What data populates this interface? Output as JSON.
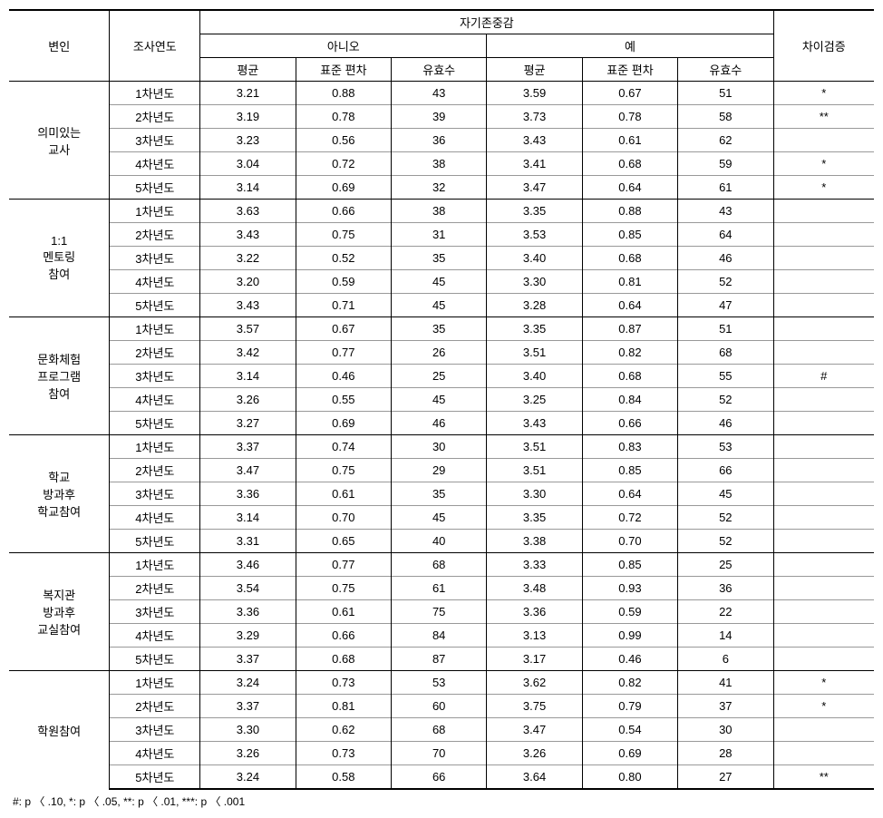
{
  "headers": {
    "variable": "변인",
    "year": "조사연도",
    "selfEsteem": "자기존중감",
    "no": "아니오",
    "yes": "예",
    "mean": "평균",
    "sd": "표준 편차",
    "n": "유효수",
    "diff": "차이검증"
  },
  "groups": [
    {
      "label": [
        "의미있는",
        "교사"
      ],
      "rows": [
        {
          "year": "1차년도",
          "nm": "3.21",
          "ns": "0.88",
          "nn": "43",
          "ym": "3.59",
          "ys": "0.67",
          "yn": "51",
          "d": "*"
        },
        {
          "year": "2차년도",
          "nm": "3.19",
          "ns": "0.78",
          "nn": "39",
          "ym": "3.73",
          "ys": "0.78",
          "yn": "58",
          "d": "**"
        },
        {
          "year": "3차년도",
          "nm": "3.23",
          "ns": "0.56",
          "nn": "36",
          "ym": "3.43",
          "ys": "0.61",
          "yn": "62",
          "d": ""
        },
        {
          "year": "4차년도",
          "nm": "3.04",
          "ns": "0.72",
          "nn": "38",
          "ym": "3.41",
          "ys": "0.68",
          "yn": "59",
          "d": "*"
        },
        {
          "year": "5차년도",
          "nm": "3.14",
          "ns": "0.69",
          "nn": "32",
          "ym": "3.47",
          "ys": "0.64",
          "yn": "61",
          "d": "*"
        }
      ]
    },
    {
      "label": [
        "1:1",
        "멘토링",
        "참여"
      ],
      "rows": [
        {
          "year": "1차년도",
          "nm": "3.63",
          "ns": "0.66",
          "nn": "38",
          "ym": "3.35",
          "ys": "0.88",
          "yn": "43",
          "d": ""
        },
        {
          "year": "2차년도",
          "nm": "3.43",
          "ns": "0.75",
          "nn": "31",
          "ym": "3.53",
          "ys": "0.85",
          "yn": "64",
          "d": ""
        },
        {
          "year": "3차년도",
          "nm": "3.22",
          "ns": "0.52",
          "nn": "35",
          "ym": "3.40",
          "ys": "0.68",
          "yn": "46",
          "d": ""
        },
        {
          "year": "4차년도",
          "nm": "3.20",
          "ns": "0.59",
          "nn": "45",
          "ym": "3.30",
          "ys": "0.81",
          "yn": "52",
          "d": ""
        },
        {
          "year": "5차년도",
          "nm": "3.43",
          "ns": "0.71",
          "nn": "45",
          "ym": "3.28",
          "ys": "0.64",
          "yn": "47",
          "d": ""
        }
      ]
    },
    {
      "label": [
        "문화체험",
        "프로그램",
        "참여"
      ],
      "rows": [
        {
          "year": "1차년도",
          "nm": "3.57",
          "ns": "0.67",
          "nn": "35",
          "ym": "3.35",
          "ys": "0.87",
          "yn": "51",
          "d": ""
        },
        {
          "year": "2차년도",
          "nm": "3.42",
          "ns": "0.77",
          "nn": "26",
          "ym": "3.51",
          "ys": "0.82",
          "yn": "68",
          "d": ""
        },
        {
          "year": "3차년도",
          "nm": "3.14",
          "ns": "0.46",
          "nn": "25",
          "ym": "3.40",
          "ys": "0.68",
          "yn": "55",
          "d": "#"
        },
        {
          "year": "4차년도",
          "nm": "3.26",
          "ns": "0.55",
          "nn": "45",
          "ym": "3.25",
          "ys": "0.84",
          "yn": "52",
          "d": ""
        },
        {
          "year": "5차년도",
          "nm": "3.27",
          "ns": "0.69",
          "nn": "46",
          "ym": "3.43",
          "ys": "0.66",
          "yn": "46",
          "d": ""
        }
      ]
    },
    {
      "label": [
        "학교",
        "방과후",
        "학교참여"
      ],
      "rows": [
        {
          "year": "1차년도",
          "nm": "3.37",
          "ns": "0.74",
          "nn": "30",
          "ym": "3.51",
          "ys": "0.83",
          "yn": "53",
          "d": ""
        },
        {
          "year": "2차년도",
          "nm": "3.47",
          "ns": "0.75",
          "nn": "29",
          "ym": "3.51",
          "ys": "0.85",
          "yn": "66",
          "d": ""
        },
        {
          "year": "3차년도",
          "nm": "3.36",
          "ns": "0.61",
          "nn": "35",
          "ym": "3.30",
          "ys": "0.64",
          "yn": "45",
          "d": ""
        },
        {
          "year": "4차년도",
          "nm": "3.14",
          "ns": "0.70",
          "nn": "45",
          "ym": "3.35",
          "ys": "0.72",
          "yn": "52",
          "d": ""
        },
        {
          "year": "5차년도",
          "nm": "3.31",
          "ns": "0.65",
          "nn": "40",
          "ym": "3.38",
          "ys": "0.70",
          "yn": "52",
          "d": ""
        }
      ]
    },
    {
      "label": [
        "복지관",
        "방과후",
        "교실참여"
      ],
      "rows": [
        {
          "year": "1차년도",
          "nm": "3.46",
          "ns": "0.77",
          "nn": "68",
          "ym": "3.33",
          "ys": "0.85",
          "yn": "25",
          "d": ""
        },
        {
          "year": "2차년도",
          "nm": "3.54",
          "ns": "0.75",
          "nn": "61",
          "ym": "3.48",
          "ys": "0.93",
          "yn": "36",
          "d": ""
        },
        {
          "year": "3차년도",
          "nm": "3.36",
          "ns": "0.61",
          "nn": "75",
          "ym": "3.36",
          "ys": "0.59",
          "yn": "22",
          "d": ""
        },
        {
          "year": "4차년도",
          "nm": "3.29",
          "ns": "0.66",
          "nn": "84",
          "ym": "3.13",
          "ys": "0.99",
          "yn": "14",
          "d": ""
        },
        {
          "year": "5차년도",
          "nm": "3.37",
          "ns": "0.68",
          "nn": "87",
          "ym": "3.17",
          "ys": "0.46",
          "yn": "6",
          "d": ""
        }
      ]
    },
    {
      "label": [
        "학원참여"
      ],
      "rows": [
        {
          "year": "1차년도",
          "nm": "3.24",
          "ns": "0.73",
          "nn": "53",
          "ym": "3.62",
          "ys": "0.82",
          "yn": "41",
          "d": "*"
        },
        {
          "year": "2차년도",
          "nm": "3.37",
          "ns": "0.81",
          "nn": "60",
          "ym": "3.75",
          "ys": "0.79",
          "yn": "37",
          "d": "*"
        },
        {
          "year": "3차년도",
          "nm": "3.30",
          "ns": "0.62",
          "nn": "68",
          "ym": "3.47",
          "ys": "0.54",
          "yn": "30",
          "d": ""
        },
        {
          "year": "4차년도",
          "nm": "3.26",
          "ns": "0.73",
          "nn": "70",
          "ym": "3.26",
          "ys": "0.69",
          "yn": "28",
          "d": ""
        },
        {
          "year": "5차년도",
          "nm": "3.24",
          "ns": "0.58",
          "nn": "66",
          "ym": "3.64",
          "ys": "0.80",
          "yn": "27",
          "d": "**"
        }
      ]
    }
  ],
  "footnote": "#: p 〈 .10, *: p 〈 .05, **: p 〈 .01, ***: p 〈 .001"
}
